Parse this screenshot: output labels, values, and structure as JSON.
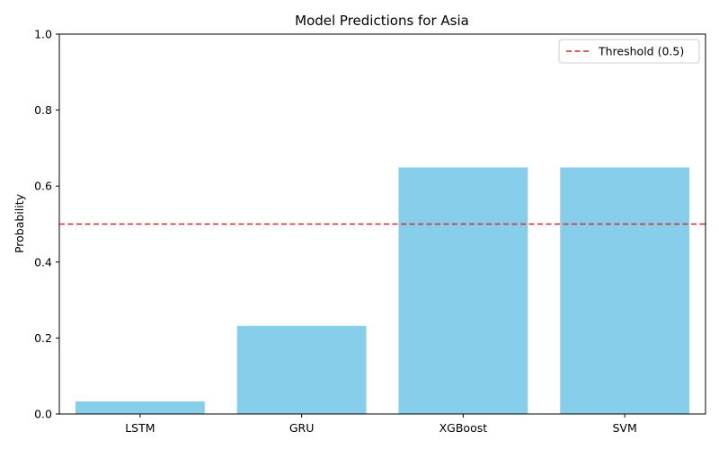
{
  "chart_data": {
    "type": "bar",
    "title": "Model Predictions for Asia",
    "xlabel": "",
    "ylabel": "Probability",
    "categories": [
      "LSTM",
      "GRU",
      "XGBoost",
      "SVM"
    ],
    "values": [
      0.033,
      0.232,
      0.649,
      0.649
    ],
    "ylim": [
      0,
      1.0
    ],
    "yticks": [
      "0.0",
      "0.2",
      "0.4",
      "0.6",
      "0.8",
      "1.0"
    ],
    "bar_color": "#87ceeb",
    "threshold": {
      "value": 0.5,
      "label": "Threshold (0.5)",
      "color": "#d62728",
      "style": "dashed"
    },
    "legend_position": "top-right",
    "grid": false
  }
}
